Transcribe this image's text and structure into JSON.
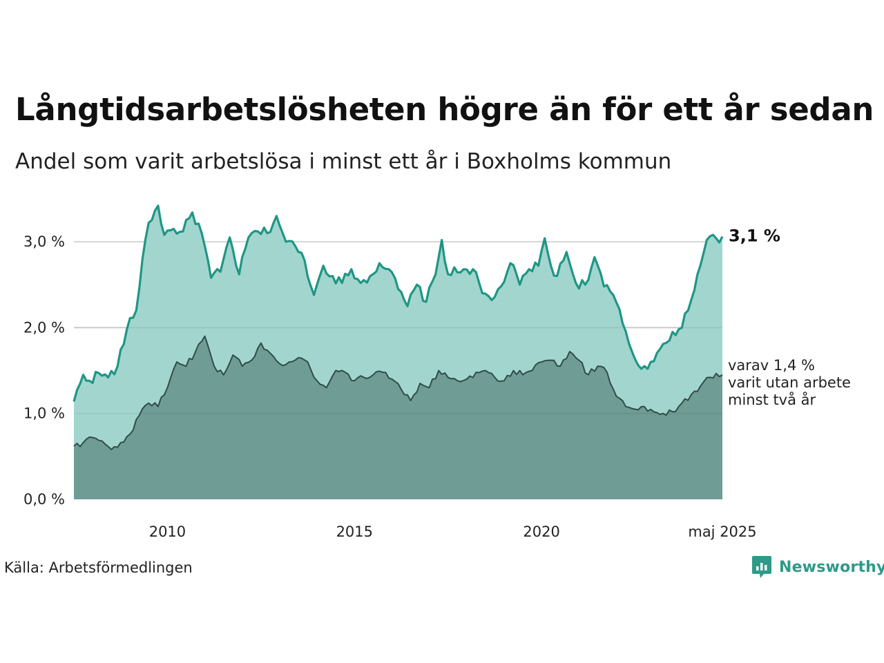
{
  "title": "Långtidsarbetslösheten högre än för ett år sedan",
  "subtitle": "Andel som varit arbetslösa i minst ett år i Boxholms kommun",
  "source": "Källa: Arbetsförmedlingen",
  "brand": "Newsworthy",
  "colors": {
    "area_long": "#a3d5cf",
    "line_long": "#1f9684",
    "area_two": "#6f9c95",
    "line_two": "#2f4d48",
    "grid": "#d7d7d7"
  },
  "chart_data": {
    "type": "area",
    "x_start": "2008-01",
    "x_end": "2025-05",
    "frequency": "monthly",
    "ylim": [
      0,
      3.4
    ],
    "yticks": [
      0,
      1,
      2,
      3
    ],
    "ytick_labels": [
      "0,0 %",
      "1,0 %",
      "2,0 %",
      "3,0 %"
    ],
    "xticks": [
      "2010",
      "2015",
      "2020"
    ],
    "xlabel_last": "maj 2025",
    "grid": true,
    "series": [
      {
        "end_label": "3,1 %",
        "anchors": [
          [
            "2008-01",
            1.14
          ],
          [
            "2008-04",
            1.45
          ],
          [
            "2008-06",
            1.38
          ],
          [
            "2008-09",
            1.47
          ],
          [
            "2008-12",
            1.42
          ],
          [
            "2009-03",
            1.55
          ],
          [
            "2009-06",
            1.98
          ],
          [
            "2009-09",
            2.2
          ],
          [
            "2009-11",
            2.8
          ],
          [
            "2010-01",
            3.22
          ],
          [
            "2010-04",
            3.42
          ],
          [
            "2010-06",
            3.08
          ],
          [
            "2010-09",
            3.15
          ],
          [
            "2010-12",
            3.12
          ],
          [
            "2011-03",
            3.34
          ],
          [
            "2011-06",
            3.1
          ],
          [
            "2011-09",
            2.58
          ],
          [
            "2011-12",
            2.65
          ],
          [
            "2012-03",
            3.05
          ],
          [
            "2012-06",
            2.62
          ],
          [
            "2012-09",
            3.05
          ],
          [
            "2012-12",
            3.12
          ],
          [
            "2013-03",
            3.1
          ],
          [
            "2013-06",
            3.3
          ],
          [
            "2013-09",
            3.0
          ],
          [
            "2013-12",
            2.95
          ],
          [
            "2014-03",
            2.78
          ],
          [
            "2014-06",
            2.38
          ],
          [
            "2014-09",
            2.72
          ],
          [
            "2014-12",
            2.6
          ],
          [
            "2015-03",
            2.52
          ],
          [
            "2015-06",
            2.68
          ],
          [
            "2015-09",
            2.52
          ],
          [
            "2015-12",
            2.6
          ],
          [
            "2016-03",
            2.75
          ],
          [
            "2016-06",
            2.68
          ],
          [
            "2016-09",
            2.45
          ],
          [
            "2016-12",
            2.25
          ],
          [
            "2017-03",
            2.5
          ],
          [
            "2017-06",
            2.3
          ],
          [
            "2017-09",
            2.62
          ],
          [
            "2017-11",
            3.02
          ],
          [
            "2018-01",
            2.62
          ],
          [
            "2018-06",
            2.68
          ],
          [
            "2018-09",
            2.68
          ],
          [
            "2018-12",
            2.4
          ],
          [
            "2019-03",
            2.32
          ],
          [
            "2019-06",
            2.48
          ],
          [
            "2019-09",
            2.75
          ],
          [
            "2019-12",
            2.5
          ],
          [
            "2020-03",
            2.68
          ],
          [
            "2020-06",
            2.72
          ],
          [
            "2020-08",
            3.04
          ],
          [
            "2020-10",
            2.72
          ],
          [
            "2020-12",
            2.6
          ],
          [
            "2021-03",
            2.88
          ],
          [
            "2021-06",
            2.52
          ],
          [
            "2021-09",
            2.5
          ],
          [
            "2021-12",
            2.82
          ],
          [
            "2022-03",
            2.48
          ],
          [
            "2022-06",
            2.38
          ],
          [
            "2022-09",
            2.05
          ],
          [
            "2022-12",
            1.72
          ],
          [
            "2023-03",
            1.52
          ],
          [
            "2023-06",
            1.6
          ],
          [
            "2023-09",
            1.75
          ],
          [
            "2023-12",
            1.85
          ],
          [
            "2024-03",
            1.98
          ],
          [
            "2024-06",
            2.2
          ],
          [
            "2024-09",
            2.62
          ],
          [
            "2024-12",
            3.02
          ],
          [
            "2025-03",
            3.04
          ],
          [
            "2025-05",
            3.06
          ]
        ]
      },
      {
        "end_label_lines": [
          "varav 1,4 %",
          "varit utan arbete",
          "minst två år"
        ],
        "anchors": [
          [
            "2008-01",
            0.62
          ],
          [
            "2008-04",
            0.66
          ],
          [
            "2008-07",
            0.72
          ],
          [
            "2008-10",
            0.68
          ],
          [
            "2009-01",
            0.58
          ],
          [
            "2009-04",
            0.66
          ],
          [
            "2009-07",
            0.76
          ],
          [
            "2009-10",
            0.98
          ],
          [
            "2010-01",
            1.12
          ],
          [
            "2010-04",
            1.08
          ],
          [
            "2010-07",
            1.3
          ],
          [
            "2010-10",
            1.6
          ],
          [
            "2011-01",
            1.55
          ],
          [
            "2011-04",
            1.72
          ],
          [
            "2011-07",
            1.9
          ],
          [
            "2011-10",
            1.55
          ],
          [
            "2012-01",
            1.45
          ],
          [
            "2012-04",
            1.68
          ],
          [
            "2012-07",
            1.55
          ],
          [
            "2012-10",
            1.62
          ],
          [
            "2013-01",
            1.82
          ],
          [
            "2013-04",
            1.7
          ],
          [
            "2013-07",
            1.58
          ],
          [
            "2013-10",
            1.6
          ],
          [
            "2014-01",
            1.65
          ],
          [
            "2014-04",
            1.6
          ],
          [
            "2014-07",
            1.38
          ],
          [
            "2014-10",
            1.3
          ],
          [
            "2015-01",
            1.5
          ],
          [
            "2015-04",
            1.48
          ],
          [
            "2015-07",
            1.38
          ],
          [
            "2015-10",
            1.42
          ],
          [
            "2016-01",
            1.45
          ],
          [
            "2016-04",
            1.48
          ],
          [
            "2016-07",
            1.4
          ],
          [
            "2016-10",
            1.28
          ],
          [
            "2017-01",
            1.15
          ],
          [
            "2017-04",
            1.35
          ],
          [
            "2017-07",
            1.3
          ],
          [
            "2017-10",
            1.5
          ],
          [
            "2018-01",
            1.42
          ],
          [
            "2018-04",
            1.38
          ],
          [
            "2018-07",
            1.4
          ],
          [
            "2018-10",
            1.48
          ],
          [
            "2019-01",
            1.5
          ],
          [
            "2019-04",
            1.42
          ],
          [
            "2019-07",
            1.38
          ],
          [
            "2019-10",
            1.5
          ],
          [
            "2020-01",
            1.45
          ],
          [
            "2020-04",
            1.5
          ],
          [
            "2020-07",
            1.6
          ],
          [
            "2020-10",
            1.62
          ],
          [
            "2021-01",
            1.55
          ],
          [
            "2021-04",
            1.72
          ],
          [
            "2021-07",
            1.62
          ],
          [
            "2021-10",
            1.45
          ],
          [
            "2022-01",
            1.55
          ],
          [
            "2022-04",
            1.48
          ],
          [
            "2022-07",
            1.2
          ],
          [
            "2022-10",
            1.08
          ],
          [
            "2023-01",
            1.05
          ],
          [
            "2023-04",
            1.08
          ],
          [
            "2023-07",
            1.02
          ],
          [
            "2023-10",
            1.0
          ],
          [
            "2024-01",
            1.02
          ],
          [
            "2024-04",
            1.12
          ],
          [
            "2024-07",
            1.22
          ],
          [
            "2024-10",
            1.32
          ],
          [
            "2025-01",
            1.42
          ],
          [
            "2025-05",
            1.45
          ]
        ]
      }
    ]
  }
}
